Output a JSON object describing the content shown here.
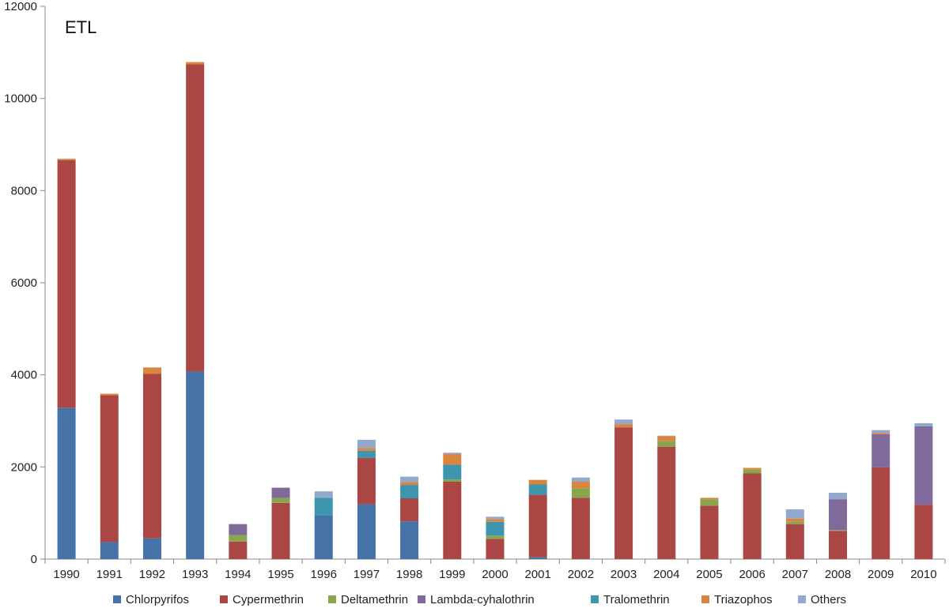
{
  "chart_data": {
    "type": "bar",
    "stacked": true,
    "title": "ETL",
    "xlabel": "",
    "ylabel": "",
    "ylim": [
      0,
      12000
    ],
    "yticks": [
      0,
      2000,
      4000,
      6000,
      8000,
      10000,
      12000
    ],
    "grid": false,
    "legend_position": "bottom",
    "categories": [
      "1990",
      "1991",
      "1992",
      "1993",
      "1994",
      "1995",
      "1996",
      "1997",
      "1998",
      "1999",
      "2000",
      "2001",
      "2002",
      "2003",
      "2004",
      "2005",
      "2006",
      "2007",
      "2008",
      "2009",
      "2010"
    ],
    "series": [
      {
        "name": "Chlorpyrifos",
        "color": "#4572A7",
        "values": [
          3280,
          370,
          450,
          4070,
          0,
          0,
          950,
          1190,
          820,
          0,
          0,
          40,
          0,
          0,
          0,
          0,
          0,
          0,
          0,
          0,
          0
        ]
      },
      {
        "name": "Cypermethrin",
        "color": "#AA4643",
        "values": [
          5380,
          3190,
          3570,
          6670,
          380,
          1220,
          0,
          1010,
          500,
          1680,
          440,
          1360,
          1330,
          2860,
          2440,
          1160,
          1860,
          760,
          610,
          1990,
          1180
        ]
      },
      {
        "name": "Deltamethrin",
        "color": "#89A54E",
        "values": [
          0,
          0,
          0,
          0,
          140,
          110,
          0,
          0,
          0,
          50,
          70,
          0,
          210,
          0,
          120,
          140,
          80,
          50,
          20,
          0,
          0
        ]
      },
      {
        "name": "Lambda-cyhalothrin",
        "color": "#80699B",
        "values": [
          0,
          0,
          0,
          0,
          240,
          220,
          0,
          0,
          0,
          0,
          0,
          0,
          0,
          0,
          0,
          0,
          0,
          0,
          670,
          720,
          1700
        ]
      },
      {
        "name": "Tralomethrin",
        "color": "#3D96AE",
        "values": [
          0,
          0,
          0,
          0,
          0,
          0,
          380,
          150,
          290,
          320,
          300,
          220,
          0,
          0,
          0,
          0,
          0,
          0,
          0,
          0,
          0
        ]
      },
      {
        "name": "Triazophos",
        "color": "#DB843D",
        "values": [
          30,
          30,
          140,
          50,
          0,
          0,
          0,
          60,
          60,
          230,
          60,
          100,
          140,
          70,
          110,
          30,
          40,
          70,
          0,
          30,
          0
        ]
      },
      {
        "name": "Others",
        "color": "#92A8CD",
        "values": [
          0,
          0,
          0,
          0,
          0,
          0,
          140,
          180,
          120,
          30,
          50,
          0,
          90,
          100,
          10,
          0,
          0,
          200,
          140,
          60,
          70
        ]
      }
    ]
  }
}
